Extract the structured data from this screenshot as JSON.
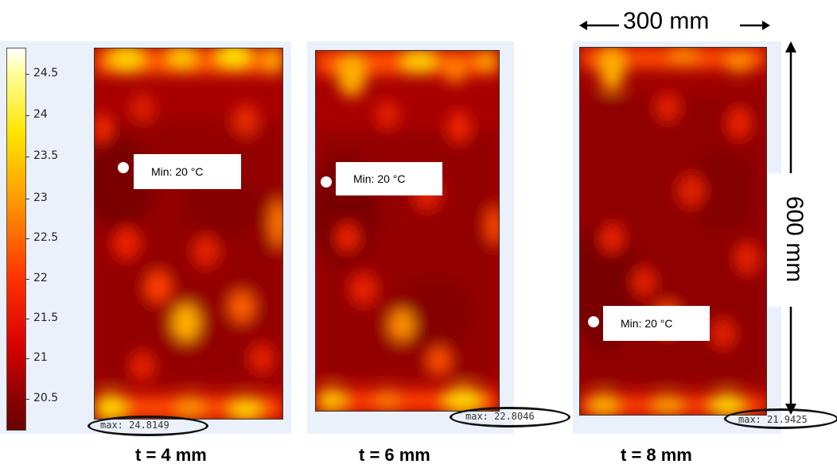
{
  "colorbar": {
    "ticks": [
      "24.5",
      "24",
      "23.5",
      "23",
      "22.5",
      "22",
      "21.5",
      "21",
      "20.5"
    ]
  },
  "panels": [
    {
      "caption": "t = 4 mm",
      "min_label": "Min: 20 °C",
      "max_label": "max: 24.8149"
    },
    {
      "caption": "t = 6 mm",
      "min_label": "Min: 20 °C",
      "max_label": "max: 22.8046"
    },
    {
      "caption": "t = 8 mm",
      "min_label": "Min: 20 °C",
      "max_label": "max: 21.9425"
    }
  ],
  "dimensions": {
    "width_label": "300 mm",
    "height_label": "600 mm"
  },
  "colors": {
    "low": "#7a0000",
    "mid": "#d01000",
    "high": "#ffd800",
    "peak": "#ffffe0"
  }
}
